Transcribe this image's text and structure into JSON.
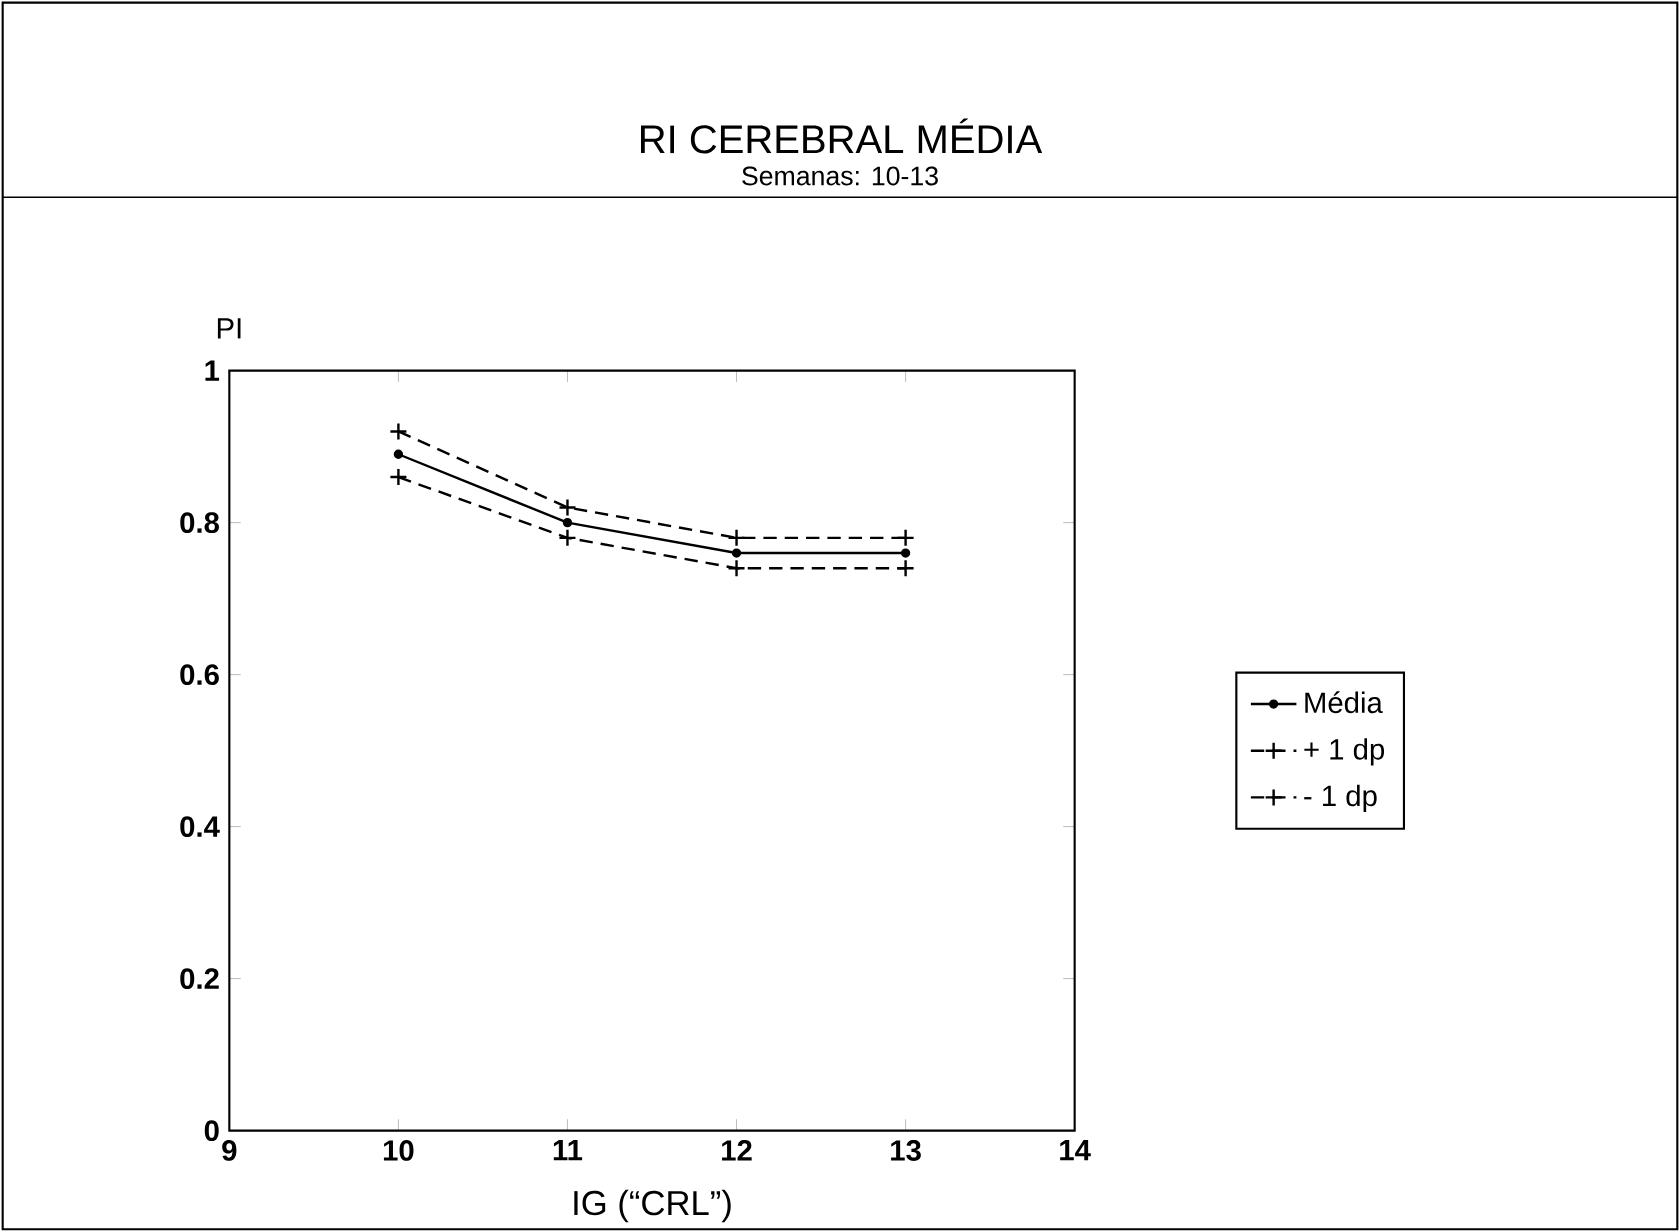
{
  "chart_data": {
    "type": "line",
    "title": "RI CEREBRAL MÉDIA",
    "subtitle": "Semanas: 10-13",
    "xlabel": "IG (“CRL”)",
    "ylabel": "PI",
    "x": [
      10,
      11,
      12,
      13
    ],
    "series": [
      {
        "name": "Média",
        "color": "#000000",
        "values": [
          0.89,
          0.8,
          0.76,
          0.76
        ],
        "marker": "circle",
        "line_style": "solid"
      },
      {
        "name": "+ 1 dp",
        "color": "#000000",
        "values": [
          0.92,
          0.82,
          0.78,
          0.78
        ],
        "marker": "cross",
        "line_style": "dashed"
      },
      {
        "name": "- 1 dp",
        "color": "#000000",
        "values": [
          0.86,
          0.78,
          0.74,
          0.74
        ],
        "marker": "cross",
        "line_style": "dashed"
      }
    ],
    "xlim": [
      9,
      14
    ],
    "xticks": [
      9,
      10,
      11,
      12,
      13,
      14
    ],
    "ylim": [
      0,
      1
    ],
    "yticks": [
      0,
      0.2,
      0.4,
      0.6,
      0.8,
      1
    ],
    "grid": false,
    "legend": "right"
  }
}
